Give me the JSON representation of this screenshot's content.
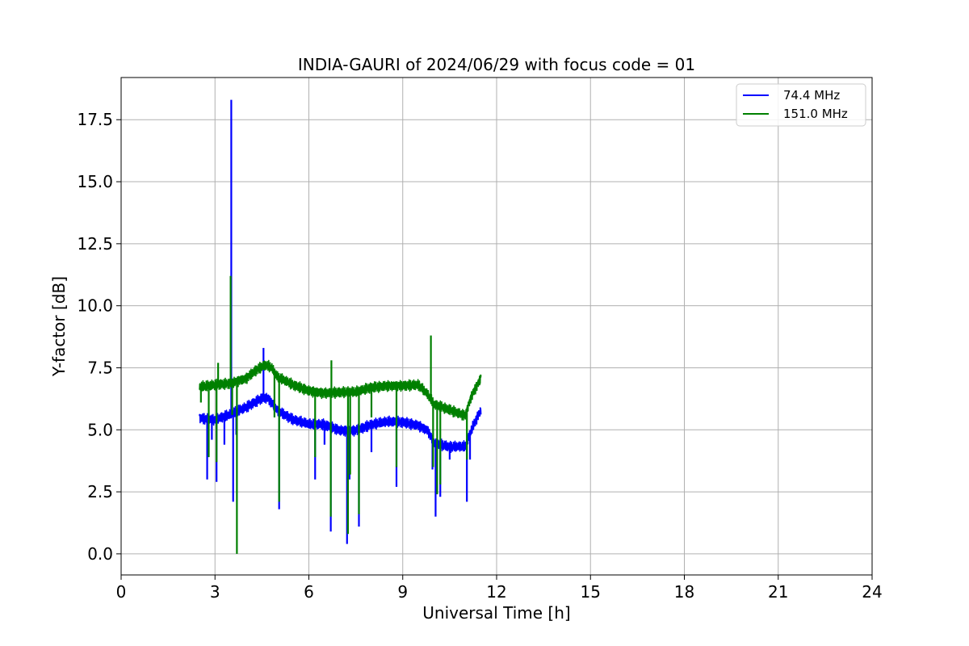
{
  "chart_data": {
    "type": "line",
    "title": "INDIA-GAURI of 2024/06/29 with focus code = 01",
    "xlabel": "Universal Time [h]",
    "ylabel": "Y-factor [dB]",
    "xlim": [
      0,
      24
    ],
    "ylim": [
      -0.85,
      19.2
    ],
    "xticks": [
      0,
      3,
      6,
      9,
      12,
      15,
      18,
      21,
      24
    ],
    "yticks": [
      0.0,
      2.5,
      5.0,
      7.5,
      10.0,
      12.5,
      15.0,
      17.5
    ],
    "xtick_labels": [
      "0",
      "3",
      "6",
      "9",
      "12",
      "15",
      "18",
      "21",
      "24"
    ],
    "ytick_labels": [
      "0.0",
      "2.5",
      "5.0",
      "7.5",
      "10.0",
      "12.5",
      "15.0",
      "17.5"
    ],
    "grid": true,
    "legend_position": "top-right",
    "series": [
      {
        "name": " 74.4 MHz",
        "color": "#0000ff",
        "x": [
          2.5,
          3.0,
          3.5,
          4.0,
          4.5,
          4.7,
          5.0,
          5.5,
          6.0,
          6.5,
          7.0,
          7.5,
          8.0,
          8.5,
          9.0,
          9.5,
          9.8,
          10.0,
          10.5,
          11.0,
          11.2,
          11.5
        ],
        "y": [
          5.5,
          5.4,
          5.6,
          5.9,
          6.3,
          6.3,
          5.8,
          5.4,
          5.2,
          5.2,
          5.0,
          5.0,
          5.2,
          5.3,
          5.3,
          5.2,
          5.0,
          4.5,
          4.3,
          4.3,
          5.0,
          5.8
        ],
        "spikes": [
          {
            "x": 2.75,
            "y": 3.0
          },
          {
            "x": 2.9,
            "y": 4.6
          },
          {
            "x": 3.05,
            "y": 2.9
          },
          {
            "x": 3.3,
            "y": 4.4
          },
          {
            "x": 3.52,
            "y": 18.3
          },
          {
            "x": 3.58,
            "y": 2.1
          },
          {
            "x": 3.68,
            "y": 4.8
          },
          {
            "x": 4.55,
            "y": 8.3
          },
          {
            "x": 5.05,
            "y": 1.8
          },
          {
            "x": 6.2,
            "y": 3.0
          },
          {
            "x": 6.5,
            "y": 4.4
          },
          {
            "x": 6.7,
            "y": 0.9
          },
          {
            "x": 7.22,
            "y": 0.4
          },
          {
            "x": 7.3,
            "y": 3.0
          },
          {
            "x": 7.6,
            "y": 1.1
          },
          {
            "x": 8.0,
            "y": 4.1
          },
          {
            "x": 8.8,
            "y": 2.7
          },
          {
            "x": 9.95,
            "y": 3.4
          },
          {
            "x": 10.05,
            "y": 1.5
          },
          {
            "x": 10.2,
            "y": 2.3
          },
          {
            "x": 10.5,
            "y": 3.8
          },
          {
            "x": 11.05,
            "y": 2.1
          },
          {
            "x": 11.15,
            "y": 3.8
          }
        ]
      },
      {
        "name": "151.0 MHz",
        "color": "#008000",
        "x": [
          2.5,
          3.0,
          3.5,
          4.0,
          4.3,
          4.6,
          4.8,
          5.0,
          5.5,
          6.0,
          6.5,
          7.0,
          7.5,
          8.0,
          8.5,
          9.0,
          9.5,
          9.8,
          10.0,
          10.5,
          11.0,
          11.2,
          11.5
        ],
        "y": [
          6.7,
          6.8,
          6.9,
          7.1,
          7.4,
          7.6,
          7.5,
          7.1,
          6.8,
          6.6,
          6.5,
          6.5,
          6.5,
          6.7,
          6.8,
          6.8,
          6.8,
          6.4,
          6.0,
          5.8,
          5.6,
          6.4,
          7.1
        ],
        "spikes": [
          {
            "x": 2.55,
            "y": 6.1
          },
          {
            "x": 2.8,
            "y": 3.9
          },
          {
            "x": 3.05,
            "y": 3.7
          },
          {
            "x": 3.1,
            "y": 7.7
          },
          {
            "x": 3.5,
            "y": 11.2
          },
          {
            "x": 3.55,
            "y": 5.6
          },
          {
            "x": 3.7,
            "y": 0.0
          },
          {
            "x": 4.9,
            "y": 5.5
          },
          {
            "x": 5.05,
            "y": 2.1
          },
          {
            "x": 6.2,
            "y": 3.9
          },
          {
            "x": 6.7,
            "y": 1.5
          },
          {
            "x": 6.72,
            "y": 7.8
          },
          {
            "x": 7.25,
            "y": 0.8
          },
          {
            "x": 7.32,
            "y": 3.2
          },
          {
            "x": 7.6,
            "y": 1.6
          },
          {
            "x": 8.0,
            "y": 5.5
          },
          {
            "x": 8.8,
            "y": 3.5
          },
          {
            "x": 9.9,
            "y": 8.8
          },
          {
            "x": 9.97,
            "y": 3.5
          },
          {
            "x": 10.1,
            "y": 2.4
          },
          {
            "x": 10.2,
            "y": 2.8
          },
          {
            "x": 11.05,
            "y": 3.8
          }
        ]
      }
    ]
  }
}
